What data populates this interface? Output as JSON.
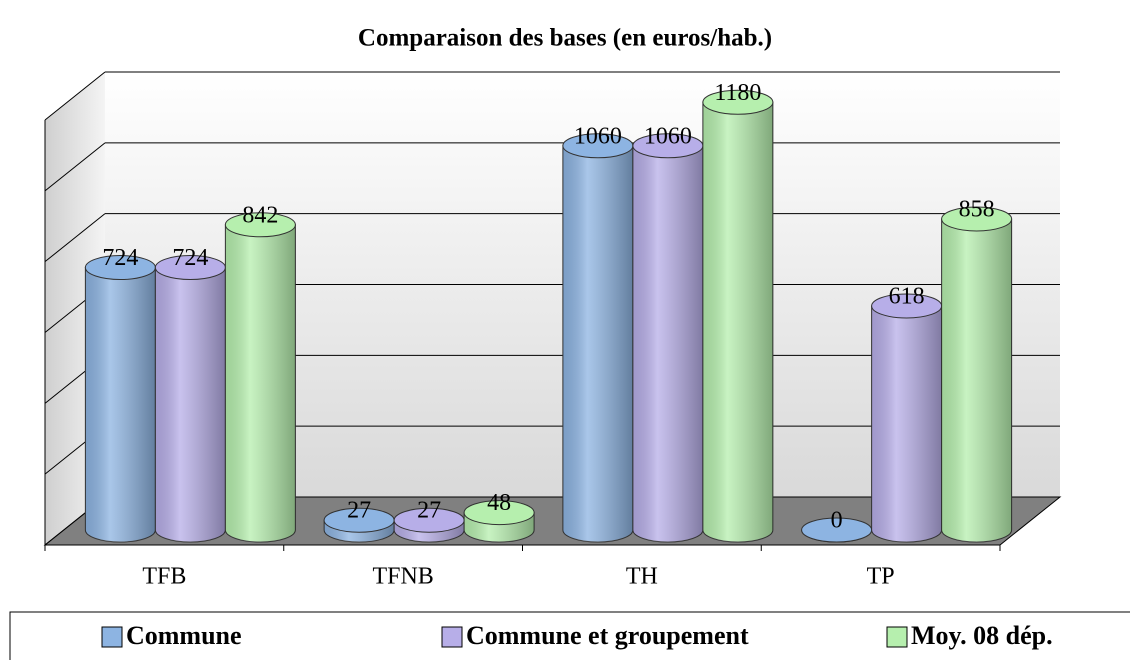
{
  "chart_data": {
    "type": "bar3d",
    "title": "Comparaison des bases (en euros/hab.)",
    "categories": [
      "TFB",
      "TFNB",
      "TH",
      "TP"
    ],
    "series": [
      {
        "name": "Commune",
        "color": "#8db4e2",
        "values": [
          724,
          27,
          1060,
          0
        ]
      },
      {
        "name": "Commune et groupement",
        "color": "#b7aee8",
        "values": [
          724,
          27,
          1060,
          618
        ]
      },
      {
        "name": "Moy. 08 dép.",
        "color": "#b6efae",
        "values": [
          842,
          48,
          1180,
          858
        ]
      }
    ],
    "ylim": [
      0,
      1200
    ],
    "yticks": [
      0,
      200,
      400,
      600,
      800,
      1000,
      1200
    ],
    "grid": true,
    "legend": "bottom"
  }
}
